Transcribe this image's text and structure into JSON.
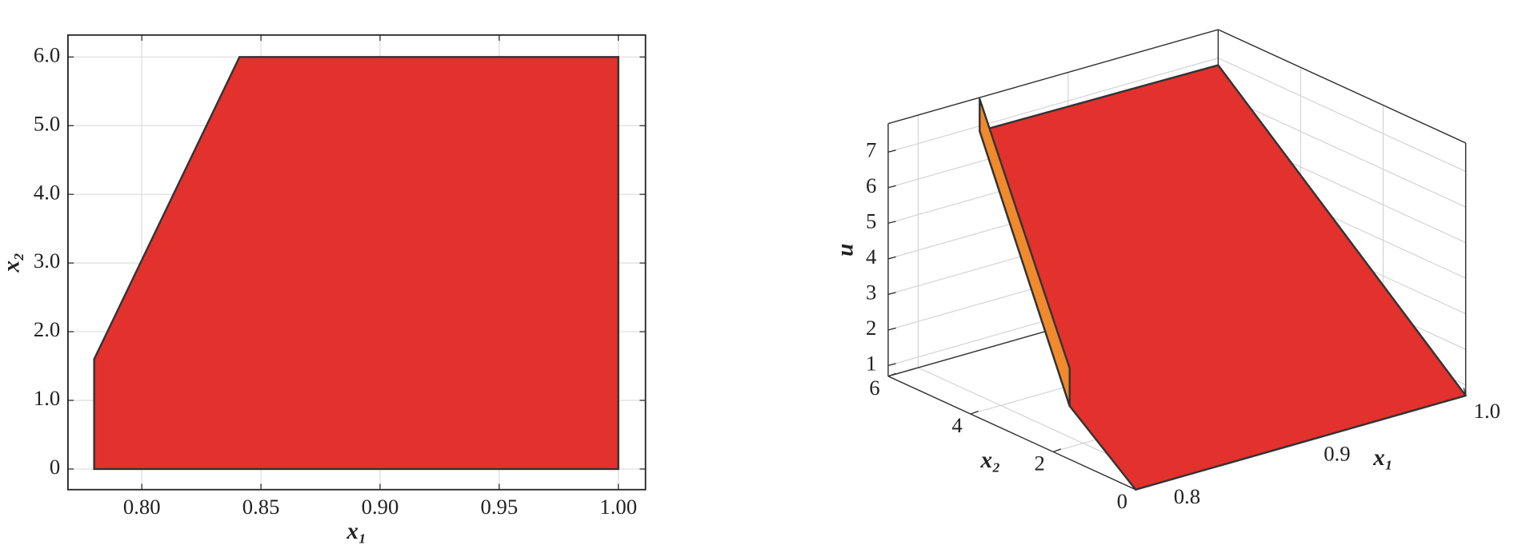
{
  "chart_data": [
    {
      "type": "polygon",
      "color": "#e3312d",
      "edge_color": "#333333",
      "x": [
        0.78,
        0.78,
        0.841,
        1.0,
        1.0
      ],
      "y": [
        0,
        1.6,
        6.0,
        6.0,
        0
      ],
      "xlim": [
        0.769,
        1.0114
      ],
      "ylim": [
        -0.3,
        6.32
      ],
      "xticks": [
        {
          "value": 0.8,
          "label": "0.80"
        },
        {
          "value": 0.85,
          "label": "0.85"
        },
        {
          "value": 0.9,
          "label": "0.90"
        },
        {
          "value": 0.95,
          "label": "0.95"
        },
        {
          "value": 1.0,
          "label": "1.00"
        }
      ],
      "yticks": [
        0,
        {
          "value": 1,
          "label": "1.0"
        },
        {
          "value": 2,
          "label": "2.0"
        },
        {
          "value": 3,
          "label": "3.0"
        },
        {
          "value": 4,
          "label": "4.0"
        },
        {
          "value": 5,
          "label": "5.0"
        },
        {
          "value": 6,
          "label": "6.0"
        }
      ],
      "xlabel": "x₁",
      "ylabel": "x₂",
      "grid": true
    },
    {
      "type": "surface3d",
      "faces": [
        {
          "color": "#e3312d",
          "x1": [
            0.78,
            1.0,
            1.0,
            0.841,
            0.78
          ],
          "x2": [
            0,
            0,
            6,
            6,
            1.6
          ],
          "u": [
            0.7,
            0.7,
            6.8,
            6.86,
            2.2
          ]
        },
        {
          "color": "#f08a2c",
          "x1": [
            0.78,
            0.78,
            0.841,
            0.841
          ],
          "x2": [
            1.6,
            1.6,
            6,
            6
          ],
          "u": [
            2.2,
            3.26,
            7.76,
            6.86
          ]
        }
      ],
      "xlim": [
        0.78,
        1.0
      ],
      "ylim": [
        0,
        6
      ],
      "zlim": [
        0.7,
        7.8
      ],
      "xticks": [
        {
          "value": 0.8,
          "label": "0.8"
        },
        {
          "value": 0.9,
          "label": "0.9"
        },
        {
          "value": 1.0,
          "label": "1.0"
        }
      ],
      "yticks": [
        0,
        2,
        4,
        6
      ],
      "zticks": [
        1,
        2,
        3,
        4,
        5,
        6,
        7
      ],
      "xlabel": "x₁",
      "ylabel": "x₂",
      "zlabel": "u",
      "grid": true
    }
  ]
}
